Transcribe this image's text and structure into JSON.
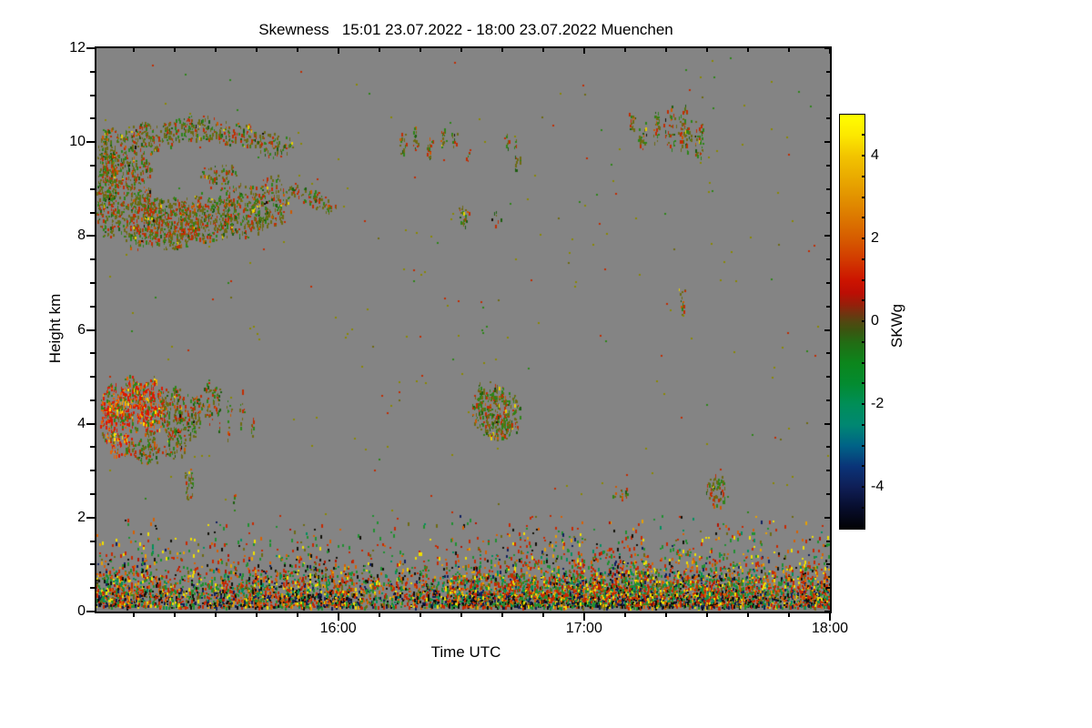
{
  "window": {
    "background": "#ffffff"
  },
  "chart_data": {
    "type": "heatmap",
    "title": "Skewness   15:01 23.07.2022 - 18:00 23.07.2022 Muenchen",
    "xlabel": "Time UTC",
    "ylabel": "Height km",
    "plot_background": "#848484",
    "x_axis": {
      "start_minutes": 901,
      "end_minutes": 1080,
      "start_label": "15:01",
      "end_label": "18:00",
      "ticks": [
        {
          "m": 960,
          "label": "16:00"
        },
        {
          "m": 1020,
          "label": "17:00"
        },
        {
          "m": 1080,
          "label": "18:00"
        }
      ],
      "minor_step_minutes": 10
    },
    "y_axis": {
      "min_km": 0,
      "max_km": 12,
      "ticks": [
        {
          "km": 0,
          "label": "0"
        },
        {
          "km": 2,
          "label": "2"
        },
        {
          "km": 4,
          "label": "4"
        },
        {
          "km": 6,
          "label": "6"
        },
        {
          "km": 8,
          "label": "8"
        },
        {
          "km": 10,
          "label": "10"
        },
        {
          "km": 12,
          "label": "12"
        }
      ],
      "minor_step_km": 0.5
    },
    "colorbar": {
      "label": "SKWg",
      "min": -5,
      "max": 5,
      "tick_labels": [
        {
          "v": 4,
          "label": "4"
        },
        {
          "v": 2,
          "label": "2"
        },
        {
          "v": 0,
          "label": "0"
        },
        {
          "v": -2,
          "label": "-2"
        },
        {
          "v": -4,
          "label": "-4"
        }
      ],
      "minor_step": 0.5,
      "gradient": [
        [
          5,
          "#FFFF00"
        ],
        [
          4.5,
          "#FCE800"
        ],
        [
          4,
          "#F2C400"
        ],
        [
          3.5,
          "#EAAB00"
        ],
        [
          3,
          "#E29200"
        ],
        [
          2.5,
          "#DC7700"
        ],
        [
          2,
          "#D65B00"
        ],
        [
          1.5,
          "#D23A00"
        ],
        [
          1,
          "#CC1400"
        ],
        [
          0.7,
          "#BC0E04"
        ],
        [
          0.4,
          "#94200A"
        ],
        [
          0.2,
          "#713410"
        ],
        [
          0,
          "#524711"
        ],
        [
          -0.2,
          "#3C5410"
        ],
        [
          -0.5,
          "#226C14"
        ],
        [
          -1,
          "#0C861C"
        ],
        [
          -1.5,
          "#038B30"
        ],
        [
          -2,
          "#008E58"
        ],
        [
          -2.5,
          "#008772"
        ],
        [
          -3,
          "#006287"
        ],
        [
          -3.5,
          "#0A3478"
        ],
        [
          -4,
          "#0F1E56"
        ],
        [
          -4.5,
          "#070D2C"
        ],
        [
          -5,
          "#020204"
        ]
      ]
    },
    "palettes": {
      "cloud": [
        [
          "#6E6B12",
          0.38
        ],
        [
          "#2E8418",
          0.24
        ],
        [
          "#1E5E10",
          0.08
        ],
        [
          "#C22C00",
          0.22
        ],
        [
          "#CC5A00",
          0.05
        ],
        [
          "#E8D000",
          0.02
        ],
        [
          "#151005",
          0.01
        ]
      ],
      "redcore": [
        [
          "#DC1800",
          0.4
        ],
        [
          "#E86000",
          0.18
        ],
        [
          "#F5A800",
          0.08
        ],
        [
          "#FFE000",
          0.05
        ],
        [
          "#2E8418",
          0.15
        ],
        [
          "#6E6B12",
          0.14
        ]
      ],
      "boundary": [
        [
          "#C82800",
          0.24
        ],
        [
          "#D86000",
          0.1
        ],
        [
          "#209030",
          0.22
        ],
        [
          "#009060",
          0.06
        ],
        [
          "#6E6B12",
          0.08
        ],
        [
          "#F0E000",
          0.09
        ],
        [
          "#E8A000",
          0.05
        ],
        [
          "#101008",
          0.09
        ],
        [
          "#102060",
          0.05
        ],
        [
          "#B41400",
          0.02
        ]
      ],
      "noise": [
        [
          "#8A8800",
          0.5
        ],
        [
          "#2E8418",
          0.2
        ],
        [
          "#C22C00",
          0.2
        ],
        [
          "#6E6B12",
          0.1
        ]
      ]
    },
    "features": [
      {
        "t": 903.5,
        "km": 8.95,
        "rt": 3.0,
        "rkm": 1.05,
        "d": 0.62,
        "p": "cloud"
      },
      {
        "t": 911.0,
        "km": 8.45,
        "rt": 5.5,
        "rkm": 0.7,
        "d": 0.62,
        "p": "cloud"
      },
      {
        "t": 918.5,
        "km": 8.3,
        "rt": 6.5,
        "rkm": 0.6,
        "d": 0.62,
        "p": "cloud"
      },
      {
        "t": 927.5,
        "km": 8.4,
        "rt": 7.5,
        "rkm": 0.55,
        "d": 0.58,
        "p": "cloud"
      },
      {
        "t": 936.5,
        "km": 8.55,
        "rt": 6.5,
        "rkm": 0.6,
        "d": 0.52,
        "p": "cloud"
      },
      {
        "t": 944.0,
        "km": 8.75,
        "rt": 5.0,
        "rkm": 0.55,
        "d": 0.42,
        "p": "cloud"
      },
      {
        "t": 908.5,
        "km": 9.45,
        "rt": 6.0,
        "rkm": 0.42,
        "d": 0.55,
        "p": "cloud"
      },
      {
        "t": 904.0,
        "km": 9.9,
        "rt": 2.5,
        "rkm": 0.5,
        "d": 0.5,
        "p": "cloud"
      },
      {
        "t": 913.0,
        "km": 10.1,
        "rt": 7.5,
        "rkm": 0.33,
        "d": 0.52,
        "p": "cloud"
      },
      {
        "t": 925.0,
        "km": 10.3,
        "rt": 8.5,
        "rkm": 0.28,
        "d": 0.5,
        "p": "cloud"
      },
      {
        "t": 936.0,
        "km": 10.15,
        "rt": 6.0,
        "rkm": 0.26,
        "d": 0.48,
        "p": "cloud"
      },
      {
        "t": 944.5,
        "km": 9.95,
        "rt": 4.5,
        "rkm": 0.24,
        "d": 0.42,
        "p": "cloud"
      },
      {
        "t": 931.0,
        "km": 9.3,
        "rt": 5.0,
        "rkm": 0.3,
        "d": 0.3,
        "p": "cloud"
      },
      {
        "t": 953.5,
        "km": 8.82,
        "rt": 6.6,
        "rkm": 0.18,
        "d": 0.55,
        "p": "cloud",
        "a": 27
      },
      {
        "t": 975.5,
        "km": 9.95,
        "rt": 0.9,
        "rkm": 0.28,
        "d": 0.5,
        "p": "cloud"
      },
      {
        "t": 978.5,
        "km": 10.05,
        "rt": 0.9,
        "rkm": 0.3,
        "d": 0.5,
        "p": "cloud"
      },
      {
        "t": 982.0,
        "km": 9.9,
        "rt": 0.9,
        "rkm": 0.3,
        "d": 0.5,
        "p": "cloud"
      },
      {
        "t": 985.5,
        "km": 10.15,
        "rt": 0.8,
        "rkm": 0.28,
        "d": 0.5,
        "p": "cloud"
      },
      {
        "t": 988.2,
        "km": 10.05,
        "rt": 0.7,
        "rkm": 0.2,
        "d": 0.45,
        "p": "cloud"
      },
      {
        "t": 991.5,
        "km": 9.8,
        "rt": 0.6,
        "rkm": 0.2,
        "d": 0.4,
        "p": "cloud"
      },
      {
        "t": 990.5,
        "km": 8.45,
        "rt": 1.6,
        "rkm": 0.24,
        "d": 0.6,
        "p": "cloud"
      },
      {
        "t": 998.0,
        "km": 8.38,
        "rt": 1.3,
        "rkm": 0.15,
        "d": 0.35,
        "p": "cloud"
      },
      {
        "t": 1001.0,
        "km": 10.05,
        "rt": 0.6,
        "rkm": 0.22,
        "d": 0.45,
        "p": "cloud"
      },
      {
        "t": 1003.5,
        "km": 9.75,
        "rt": 0.7,
        "rkm": 0.35,
        "d": 0.5,
        "p": "cloud"
      },
      {
        "t": 1031.5,
        "km": 10.45,
        "rt": 1.1,
        "rkm": 0.3,
        "d": 0.5,
        "p": "cloud"
      },
      {
        "t": 1034.0,
        "km": 10.15,
        "rt": 1.2,
        "rkm": 0.3,
        "d": 0.45,
        "p": "cloud"
      },
      {
        "t": 1037.5,
        "km": 10.35,
        "rt": 1.0,
        "rkm": 0.45,
        "d": 0.45,
        "p": "cloud"
      },
      {
        "t": 1041.0,
        "km": 10.3,
        "rt": 1.4,
        "rkm": 0.5,
        "d": 0.4,
        "p": "cloud"
      },
      {
        "t": 1044.5,
        "km": 10.25,
        "rt": 1.5,
        "rkm": 0.55,
        "d": 0.52,
        "p": "cloud"
      },
      {
        "t": 1048.0,
        "km": 10.05,
        "rt": 1.2,
        "rkm": 0.45,
        "d": 0.48,
        "p": "cloud"
      },
      {
        "t": 905.0,
        "km": 4.35,
        "rt": 2.8,
        "rkm": 0.55,
        "d": 0.7,
        "p": "redcore"
      },
      {
        "t": 909.5,
        "km": 4.45,
        "rt": 3.4,
        "rkm": 0.62,
        "d": 0.8,
        "p": "redcore"
      },
      {
        "t": 914.5,
        "km": 4.4,
        "rt": 3.4,
        "rkm": 0.6,
        "d": 0.75,
        "p": "redcore"
      },
      {
        "t": 919.5,
        "km": 4.3,
        "rt": 3.0,
        "rkm": 0.55,
        "d": 0.62,
        "p": "cloud"
      },
      {
        "t": 924.0,
        "km": 4.2,
        "rt": 2.6,
        "rkm": 0.5,
        "d": 0.5,
        "p": "cloud"
      },
      {
        "t": 907.0,
        "km": 3.62,
        "rt": 3.0,
        "rkm": 0.35,
        "d": 0.55,
        "p": "redcore"
      },
      {
        "t": 913.0,
        "km": 3.48,
        "rt": 3.4,
        "rkm": 0.35,
        "d": 0.55,
        "p": "cloud"
      },
      {
        "t": 920.0,
        "km": 3.58,
        "rt": 3.0,
        "rkm": 0.4,
        "d": 0.45,
        "p": "cloud"
      },
      {
        "t": 903.5,
        "km": 4.05,
        "rt": 1.8,
        "rkm": 0.5,
        "d": 0.6,
        "p": "redcore"
      },
      {
        "t": 928.5,
        "km": 4.5,
        "rt": 2.2,
        "rkm": 0.5,
        "d": 0.35,
        "p": "cloud"
      },
      {
        "t": 923.6,
        "km": 2.78,
        "rt": 1.2,
        "rkm": 0.36,
        "d": 0.5,
        "p": "cloud"
      },
      {
        "t": 930.8,
        "km": 4.3,
        "rt": 0.7,
        "rkm": 0.5,
        "d": 0.42,
        "p": "cloud"
      },
      {
        "t": 933.2,
        "km": 4.0,
        "rt": 0.6,
        "rkm": 0.55,
        "d": 0.4,
        "p": "cloud"
      },
      {
        "t": 936.5,
        "km": 4.3,
        "rt": 0.6,
        "rkm": 0.5,
        "d": 0.38,
        "p": "cloud"
      },
      {
        "t": 939.0,
        "km": 3.85,
        "rt": 0.5,
        "rkm": 0.4,
        "d": 0.35,
        "p": "cloud"
      },
      {
        "t": 934.5,
        "km": 2.35,
        "rt": 0.5,
        "rkm": 0.3,
        "d": 0.4,
        "p": "cloud"
      },
      {
        "t": 998.3,
        "km": 4.3,
        "rt": 6.0,
        "rkm": 0.55,
        "d": 0.62,
        "p": "cloud"
      },
      {
        "t": 994.3,
        "km": 4.6,
        "rt": 1.4,
        "rkm": 0.3,
        "d": 0.5,
        "p": "cloud"
      },
      {
        "t": 999.5,
        "km": 3.95,
        "rt": 4.2,
        "rkm": 0.28,
        "d": 0.55,
        "p": "cloud"
      },
      {
        "t": 1044.0,
        "km": 6.7,
        "rt": 0.9,
        "rkm": 0.33,
        "d": 0.4,
        "p": "cloud"
      },
      {
        "t": 1052.2,
        "km": 2.6,
        "rt": 2.6,
        "rkm": 0.36,
        "d": 0.55,
        "p": "cloud"
      },
      {
        "t": 1028.5,
        "km": 2.58,
        "rt": 2.4,
        "rkm": 0.2,
        "d": 0.28,
        "p": "cloud"
      }
    ],
    "boundary_layer": {
      "top_km": 2.05,
      "bottom_km": 0.08,
      "palette": "boundary",
      "density_profile": [
        [
          2.05,
          0.015
        ],
        [
          1.7,
          0.04
        ],
        [
          1.4,
          0.07
        ],
        [
          1.15,
          0.11
        ],
        [
          1.0,
          0.17
        ],
        [
          0.85,
          0.26
        ],
        [
          0.7,
          0.38
        ],
        [
          0.55,
          0.52
        ],
        [
          0.4,
          0.68
        ],
        [
          0.28,
          0.8
        ],
        [
          0.15,
          0.86
        ],
        [
          0.08,
          0.82
        ]
      ]
    },
    "sparse_noise": {
      "km_min": 2.05,
      "km_max": 11.9,
      "density": 0.0025,
      "palette": "noise"
    }
  }
}
